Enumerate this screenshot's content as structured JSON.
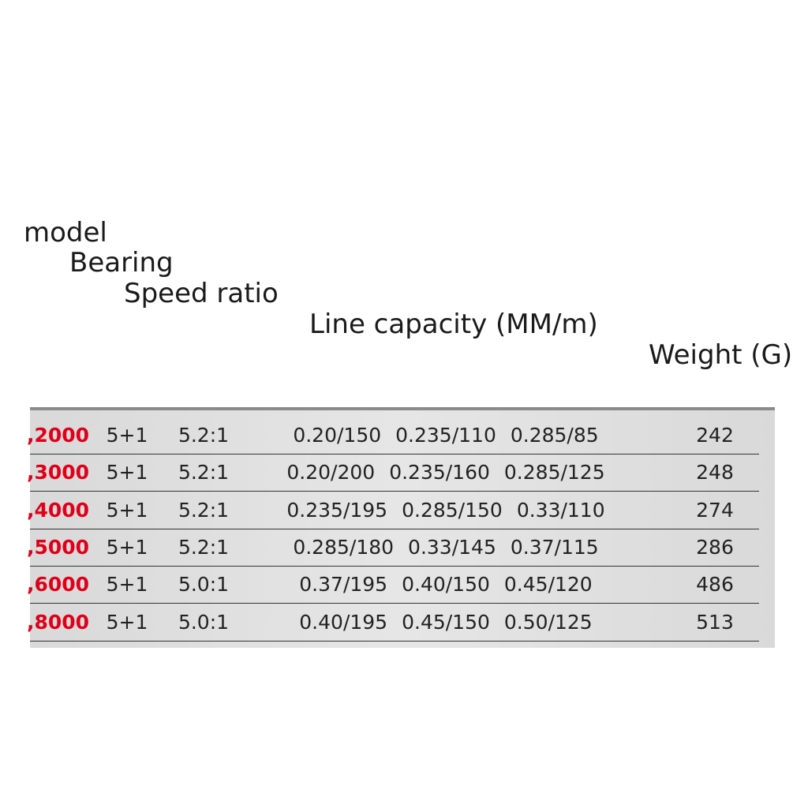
{
  "header": {
    "model": "model",
    "bearing": "Bearing",
    "speed_ratio": "Speed ratio",
    "line_capacity": "Line capacity (MM/m)",
    "weight": "Weight (G)"
  },
  "table": {
    "rows": [
      [
        ",2000",
        "5+1",
        "5.2:1",
        [
          "0.20/150",
          "0.235/110",
          "0.285/85"
        ],
        "242"
      ],
      [
        ",3000",
        "5+1",
        "5.2:1",
        [
          "0.20/200",
          "0.235/160",
          "0.285/125"
        ],
        "248"
      ],
      [
        ",4000",
        "5+1",
        "5.2:1",
        [
          "0.235/195",
          "0.285/150",
          "0.33/110"
        ],
        "274"
      ],
      [
        ",5000",
        "5+1",
        "5.2:1",
        [
          "0.285/180",
          "0.33/145",
          "0.37/115"
        ],
        "286"
      ],
      [
        ",6000",
        "5+1",
        "5.0:1",
        [
          "0.37/195",
          "0.40/150",
          "0.45/120"
        ],
        "486"
      ],
      [
        ",8000",
        "5+1",
        "5.0:1",
        [
          "0.40/195",
          "0.45/150",
          "0.50/125"
        ],
        "513"
      ]
    ]
  }
}
